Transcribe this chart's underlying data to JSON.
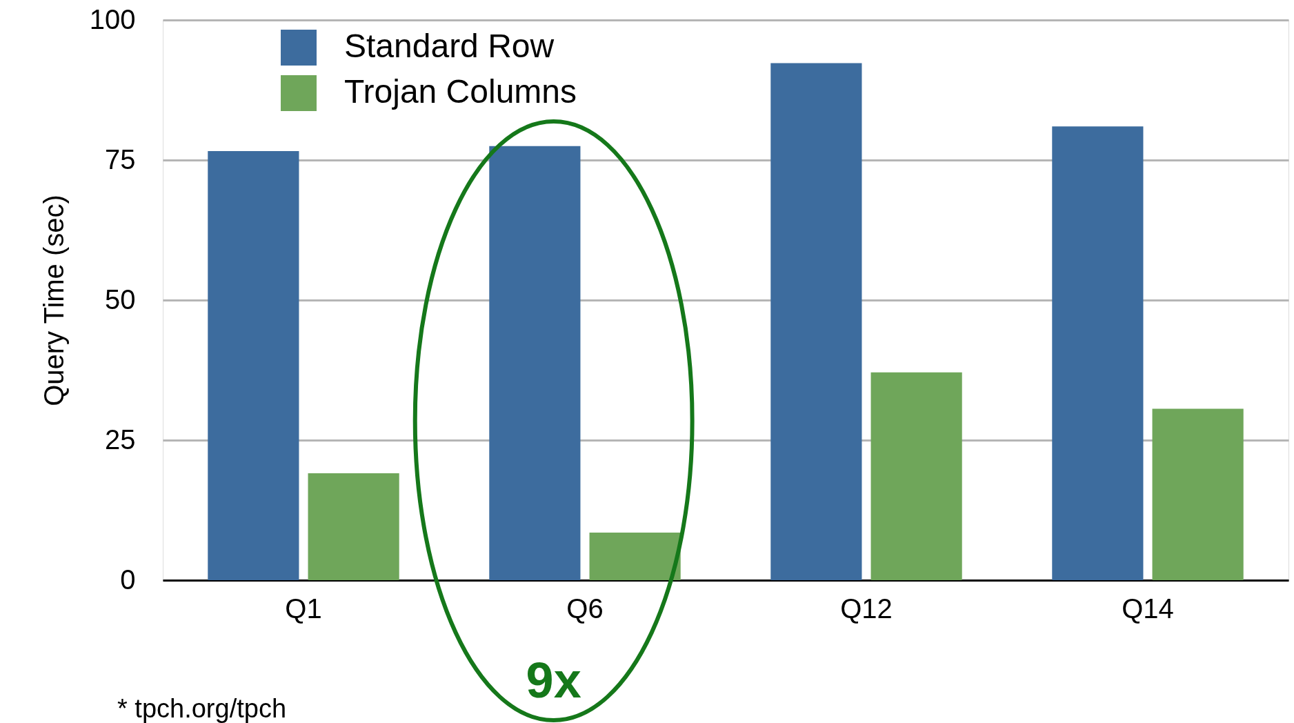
{
  "chart_data": {
    "type": "bar",
    "ylabel": "Query Time (sec)",
    "categories": [
      "Q1",
      "Q6",
      "Q12",
      "Q14"
    ],
    "series": [
      {
        "name": "Standard Row",
        "color": "#3d6c9e",
        "values": [
          76.6,
          77.5,
          92.3,
          81.0
        ]
      },
      {
        "name": "Trojan Columns",
        "color": "#6fa65a",
        "values": [
          19.1,
          8.5,
          37.1,
          30.6
        ]
      }
    ],
    "ylim": [
      0,
      100
    ],
    "yticks": [
      0,
      25,
      50,
      75,
      100
    ],
    "grid": "y",
    "legend": "top left",
    "annotations": [
      "9x",
      "* tpch.org/tpch"
    ]
  }
}
